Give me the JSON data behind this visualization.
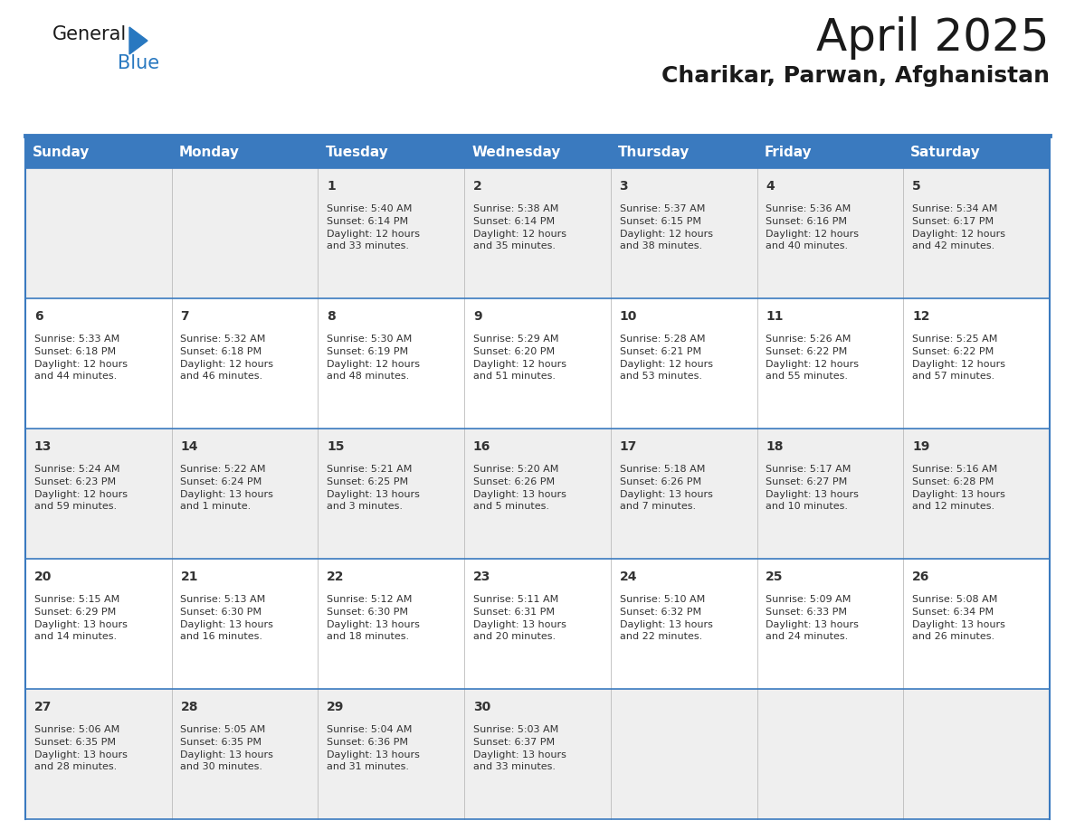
{
  "title": "April 2025",
  "subtitle": "Charikar, Parwan, Afghanistan",
  "days_of_week": [
    "Sunday",
    "Monday",
    "Tuesday",
    "Wednesday",
    "Thursday",
    "Friday",
    "Saturday"
  ],
  "header_bg": "#3a7abf",
  "header_text": "#ffffff",
  "row_bg_light": "#efefef",
  "row_bg_white": "#ffffff",
  "text_color": "#333333",
  "border_color": "#3a7abf",
  "separator_color": "#3a7abf",
  "cal_data": [
    [
      "",
      "",
      "1\nSunrise: 5:40 AM\nSunset: 6:14 PM\nDaylight: 12 hours\nand 33 minutes.",
      "2\nSunrise: 5:38 AM\nSunset: 6:14 PM\nDaylight: 12 hours\nand 35 minutes.",
      "3\nSunrise: 5:37 AM\nSunset: 6:15 PM\nDaylight: 12 hours\nand 38 minutes.",
      "4\nSunrise: 5:36 AM\nSunset: 6:16 PM\nDaylight: 12 hours\nand 40 minutes.",
      "5\nSunrise: 5:34 AM\nSunset: 6:17 PM\nDaylight: 12 hours\nand 42 minutes."
    ],
    [
      "6\nSunrise: 5:33 AM\nSunset: 6:18 PM\nDaylight: 12 hours\nand 44 minutes.",
      "7\nSunrise: 5:32 AM\nSunset: 6:18 PM\nDaylight: 12 hours\nand 46 minutes.",
      "8\nSunrise: 5:30 AM\nSunset: 6:19 PM\nDaylight: 12 hours\nand 48 minutes.",
      "9\nSunrise: 5:29 AM\nSunset: 6:20 PM\nDaylight: 12 hours\nand 51 minutes.",
      "10\nSunrise: 5:28 AM\nSunset: 6:21 PM\nDaylight: 12 hours\nand 53 minutes.",
      "11\nSunrise: 5:26 AM\nSunset: 6:22 PM\nDaylight: 12 hours\nand 55 minutes.",
      "12\nSunrise: 5:25 AM\nSunset: 6:22 PM\nDaylight: 12 hours\nand 57 minutes."
    ],
    [
      "13\nSunrise: 5:24 AM\nSunset: 6:23 PM\nDaylight: 12 hours\nand 59 minutes.",
      "14\nSunrise: 5:22 AM\nSunset: 6:24 PM\nDaylight: 13 hours\nand 1 minute.",
      "15\nSunrise: 5:21 AM\nSunset: 6:25 PM\nDaylight: 13 hours\nand 3 minutes.",
      "16\nSunrise: 5:20 AM\nSunset: 6:26 PM\nDaylight: 13 hours\nand 5 minutes.",
      "17\nSunrise: 5:18 AM\nSunset: 6:26 PM\nDaylight: 13 hours\nand 7 minutes.",
      "18\nSunrise: 5:17 AM\nSunset: 6:27 PM\nDaylight: 13 hours\nand 10 minutes.",
      "19\nSunrise: 5:16 AM\nSunset: 6:28 PM\nDaylight: 13 hours\nand 12 minutes."
    ],
    [
      "20\nSunrise: 5:15 AM\nSunset: 6:29 PM\nDaylight: 13 hours\nand 14 minutes.",
      "21\nSunrise: 5:13 AM\nSunset: 6:30 PM\nDaylight: 13 hours\nand 16 minutes.",
      "22\nSunrise: 5:12 AM\nSunset: 6:30 PM\nDaylight: 13 hours\nand 18 minutes.",
      "23\nSunrise: 5:11 AM\nSunset: 6:31 PM\nDaylight: 13 hours\nand 20 minutes.",
      "24\nSunrise: 5:10 AM\nSunset: 6:32 PM\nDaylight: 13 hours\nand 22 minutes.",
      "25\nSunrise: 5:09 AM\nSunset: 6:33 PM\nDaylight: 13 hours\nand 24 minutes.",
      "26\nSunrise: 5:08 AM\nSunset: 6:34 PM\nDaylight: 13 hours\nand 26 minutes."
    ],
    [
      "27\nSunrise: 5:06 AM\nSunset: 6:35 PM\nDaylight: 13 hours\nand 28 minutes.",
      "28\nSunrise: 5:05 AM\nSunset: 6:35 PM\nDaylight: 13 hours\nand 30 minutes.",
      "29\nSunrise: 5:04 AM\nSunset: 6:36 PM\nDaylight: 13 hours\nand 31 minutes.",
      "30\nSunrise: 5:03 AM\nSunset: 6:37 PM\nDaylight: 13 hours\nand 33 minutes.",
      "",
      "",
      ""
    ]
  ],
  "logo_text1": "General",
  "logo_text2": "Blue",
  "logo_color1": "#1a1a1a",
  "logo_color2": "#2878c0",
  "logo_triangle_color": "#2878c0",
  "title_fontsize": 36,
  "subtitle_fontsize": 18,
  "header_fontsize": 11,
  "daynum_fontsize": 10,
  "detail_fontsize": 8
}
